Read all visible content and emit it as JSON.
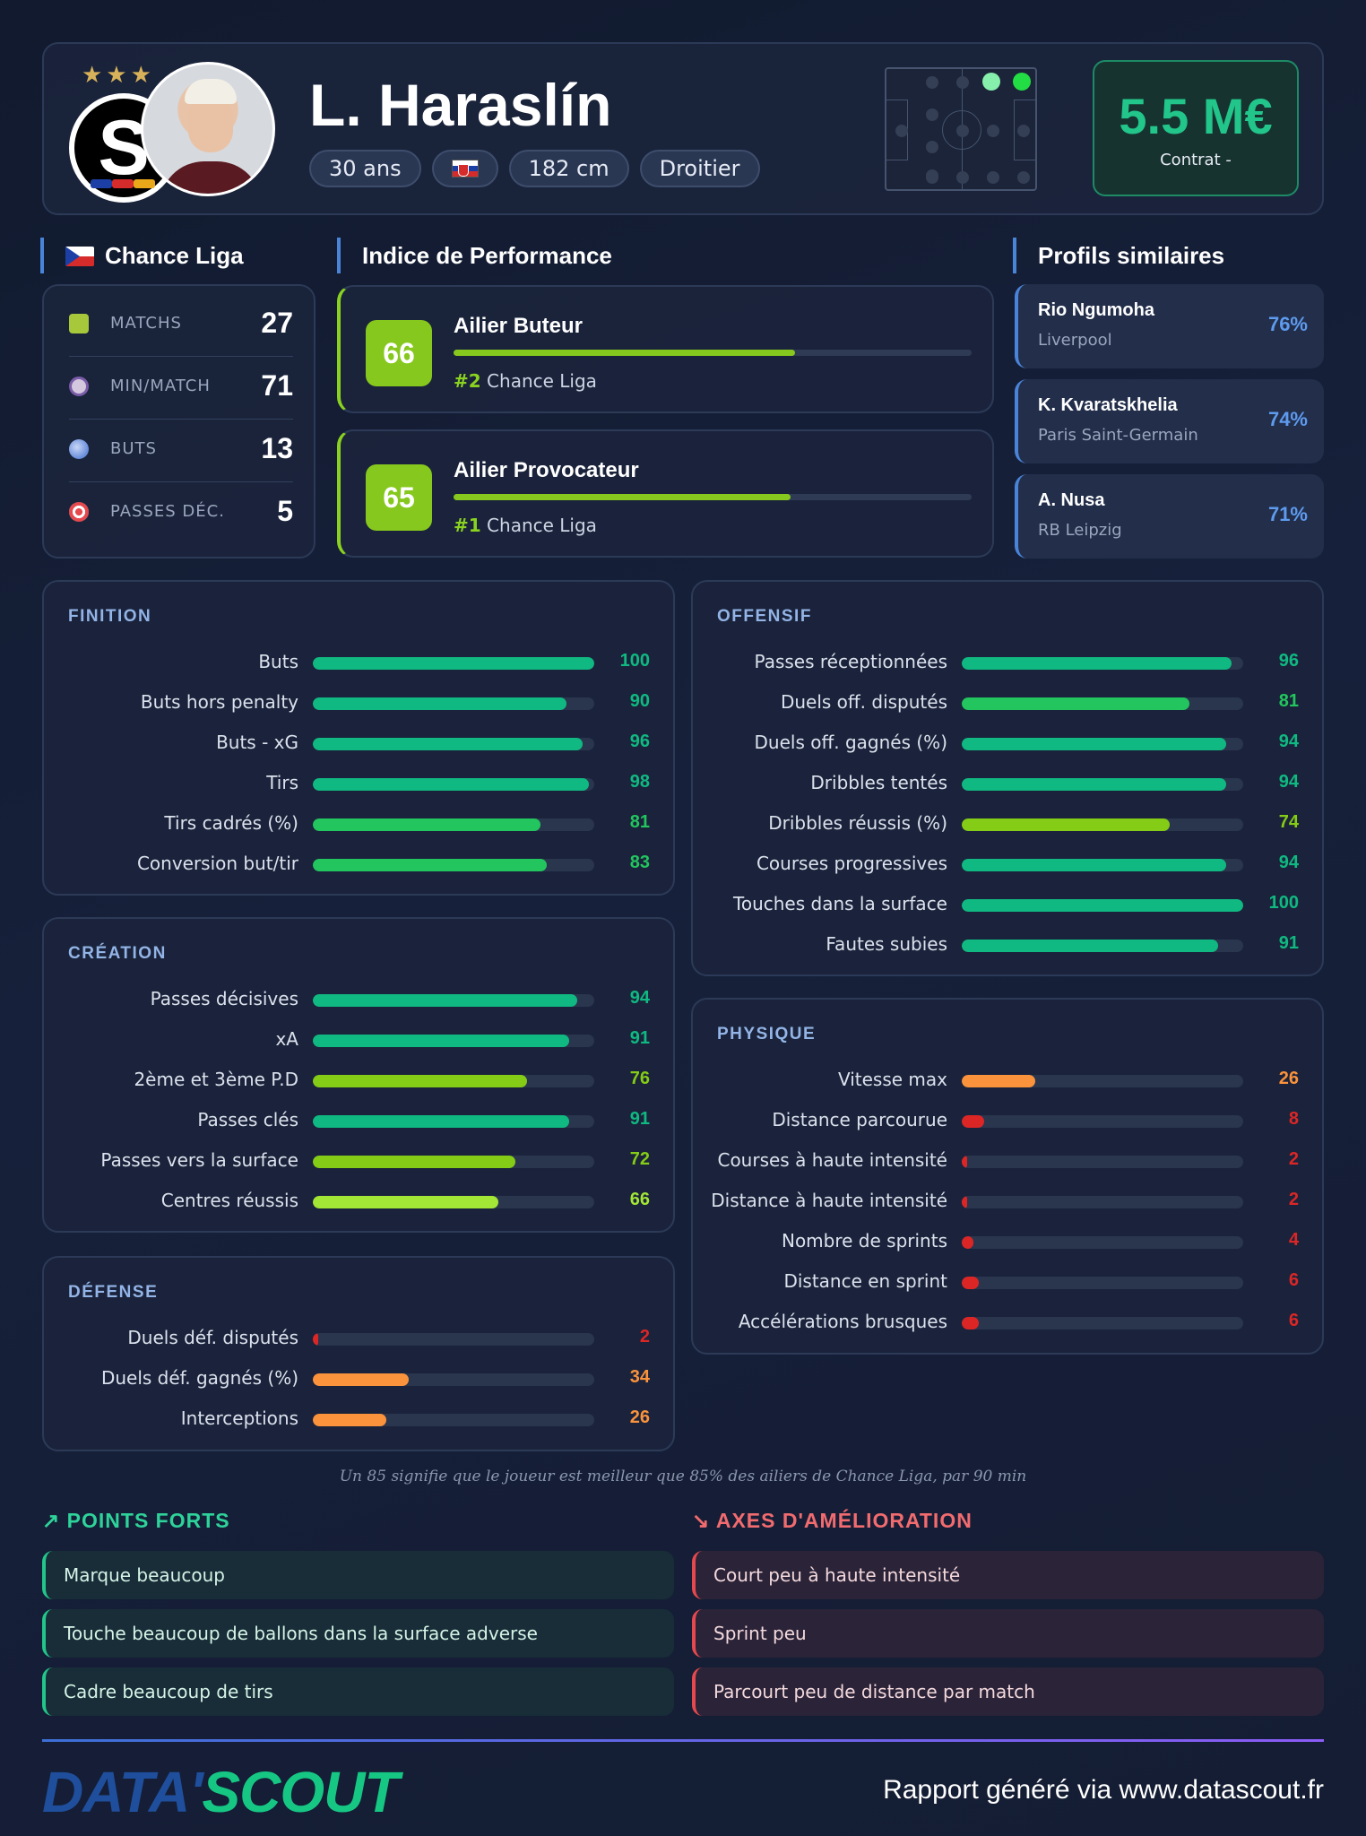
{
  "player": {
    "name": "L. Haraslín",
    "age": "30 ans",
    "nationality_flag": "flag-slovakia-icon",
    "height": "182 cm",
    "foot": "Droitier",
    "club_logo_letter": "S"
  },
  "contract": {
    "value": "5.5 M€",
    "label": "Contrat -"
  },
  "league": {
    "title": "Chance Liga",
    "stats": [
      {
        "label": "MATCHS",
        "value": "27",
        "icon": "jersey-icon"
      },
      {
        "label": "MIN/MATCH",
        "value": "71",
        "icon": "stopwatch-icon"
      },
      {
        "label": "BUTS",
        "value": "13",
        "icon": "ball-icon"
      },
      {
        "label": "PASSES DÉC.",
        "value": "5",
        "icon": "target-icon"
      }
    ]
  },
  "performance": {
    "title": "Indice de Performance",
    "cards": [
      {
        "score": "66",
        "title": "Ailier Buteur",
        "rank": "#2",
        "league": "Chance Liga",
        "fill": 0.66
      },
      {
        "score": "65",
        "title": "Ailier Provocateur",
        "rank": "#1",
        "league": "Chance Liga",
        "fill": 0.65
      }
    ]
  },
  "similar": {
    "title": "Profils similaires",
    "items": [
      {
        "name": "Rio Ngumoha",
        "club": "Liverpool",
        "pct": "76%"
      },
      {
        "name": "K. Kvaratskhelia",
        "club": "Paris Saint-Germain",
        "pct": "74%"
      },
      {
        "name": "A. Nusa",
        "club": "RB Leipzig",
        "pct": "71%"
      }
    ]
  },
  "sections": {
    "finition": {
      "title": "FINITION",
      "rows": [
        {
          "label": "Buts",
          "value": "100"
        },
        {
          "label": "Buts hors penalty",
          "value": "90"
        },
        {
          "label": "Buts - xG",
          "value": "96"
        },
        {
          "label": "Tirs",
          "value": "98"
        },
        {
          "label": "Tirs cadrés (%)",
          "value": "81"
        },
        {
          "label": "Conversion but/tir",
          "value": "83"
        }
      ]
    },
    "creation": {
      "title": "CRÉATION",
      "rows": [
        {
          "label": "Passes décisives",
          "value": "94"
        },
        {
          "label": "xA",
          "value": "91"
        },
        {
          "label": "2ème et 3ème P.D",
          "value": "76"
        },
        {
          "label": "Passes clés",
          "value": "91"
        },
        {
          "label": "Passes vers la surface",
          "value": "72"
        },
        {
          "label": "Centres réussis",
          "value": "66"
        }
      ]
    },
    "defense": {
      "title": "DÉFENSE",
      "rows": [
        {
          "label": "Duels déf. disputés",
          "value": "2"
        },
        {
          "label": "Duels déf. gagnés (%)",
          "value": "34"
        },
        {
          "label": "Interceptions",
          "value": "26"
        }
      ]
    },
    "offensif": {
      "title": "OFFENSIF",
      "rows": [
        {
          "label": "Passes réceptionnées",
          "value": "96"
        },
        {
          "label": "Duels off. disputés",
          "value": "81"
        },
        {
          "label": "Duels off. gagnés (%)",
          "value": "94"
        },
        {
          "label": "Dribbles tentés",
          "value": "94"
        },
        {
          "label": "Dribbles réussis (%)",
          "value": "74"
        },
        {
          "label": "Courses progressives",
          "value": "94"
        },
        {
          "label": "Touches dans la surface",
          "value": "100"
        },
        {
          "label": "Fautes subies",
          "value": "91"
        }
      ]
    },
    "physique": {
      "title": "PHYSIQUE",
      "rows": [
        {
          "label": "Vitesse max",
          "value": "26"
        },
        {
          "label": "Distance parcourue",
          "value": "8"
        },
        {
          "label": "Courses à haute intensité",
          "value": "2"
        },
        {
          "label": "Distance à haute intensité",
          "value": "2"
        },
        {
          "label": "Nombre de sprints",
          "value": "4"
        },
        {
          "label": "Distance en sprint",
          "value": "6"
        },
        {
          "label": "Accélérations brusques",
          "value": "6"
        }
      ]
    }
  },
  "note": "Un 85 signifie que le joueur est meilleur que 85% des ailiers de Chance Liga, par 90 min",
  "strengths": {
    "title": "POINTS FORTS",
    "items": [
      "Marque beaucoup",
      "Touche beaucoup de ballons dans la surface adverse",
      "Cadre beaucoup de tirs"
    ]
  },
  "weaknesses": {
    "title": "AXES D'AMÉLIORATION",
    "items": [
      "Court peu à haute intensité",
      "Sprint peu",
      "Parcourt peu de distance par match"
    ]
  },
  "footer": {
    "brand_a": "DATA'",
    "brand_b": "SCOUT",
    "text": "Rapport généré via www.datascout.fr"
  },
  "colors": {
    "elite": "#10b981",
    "high": "#22c55e",
    "good": "#84cc16",
    "fair": "#a3e635",
    "mid": "#fb923c",
    "low": "#dc2626",
    "accent": "#4a84d8"
  }
}
